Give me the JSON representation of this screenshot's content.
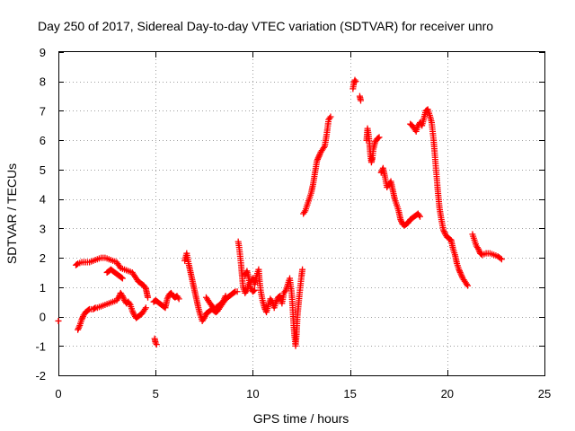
{
  "chart_data": {
    "type": "scatter",
    "title": "Day 250 of 2017, Sidereal Day-to-day VTEC variation (SDTVAR) for receiver unro",
    "xlabel": "GPS time / hours",
    "ylabel": "SDTVAR / TECUs",
    "xlim": [
      0,
      25
    ],
    "ylim": [
      -2,
      9
    ],
    "xticks": [
      0,
      5,
      10,
      15,
      20,
      25
    ],
    "yticks": [
      -2,
      -1,
      0,
      1,
      2,
      3,
      4,
      5,
      6,
      7,
      8,
      9
    ],
    "grid": true,
    "marker": "+",
    "color": "#ff0000",
    "series": [
      {
        "name": "SDTVAR",
        "segments": [
          [
            [
              0.0,
              -0.15
            ]
          ],
          [
            [
              0.9,
              1.75
            ],
            [
              1.0,
              1.8
            ],
            [
              1.2,
              1.85
            ],
            [
              1.4,
              1.85
            ],
            [
              1.6,
              1.85
            ],
            [
              1.8,
              1.9
            ],
            [
              2.0,
              1.95
            ],
            [
              2.2,
              2.0
            ],
            [
              2.4,
              2.0
            ],
            [
              2.6,
              1.95
            ],
            [
              2.8,
              1.9
            ],
            [
              3.0,
              1.85
            ],
            [
              3.1,
              1.75
            ],
            [
              3.2,
              1.65
            ],
            [
              3.4,
              1.6
            ],
            [
              3.6,
              1.55
            ],
            [
              3.8,
              1.5
            ],
            [
              3.9,
              1.4
            ],
            [
              4.0,
              1.3
            ],
            [
              4.1,
              1.2
            ],
            [
              4.2,
              1.15
            ],
            [
              4.3,
              1.1
            ],
            [
              4.4,
              1.05
            ],
            [
              4.5,
              0.95
            ],
            [
              4.55,
              0.8
            ],
            [
              4.6,
              0.65
            ]
          ],
          [
            [
              2.5,
              1.5
            ],
            [
              2.6,
              1.55
            ],
            [
              2.7,
              1.6
            ],
            [
              2.8,
              1.55
            ],
            [
              2.9,
              1.5
            ],
            [
              3.0,
              1.45
            ],
            [
              3.1,
              1.4
            ],
            [
              3.2,
              1.35
            ],
            [
              3.3,
              1.3
            ]
          ],
          [
            [
              1.0,
              -0.45
            ],
            [
              1.1,
              -0.3
            ],
            [
              1.2,
              -0.1
            ],
            [
              1.3,
              0.05
            ],
            [
              1.4,
              0.15
            ],
            [
              1.5,
              0.2
            ],
            [
              1.6,
              0.25
            ],
            [
              1.7,
              0.25
            ],
            [
              1.8,
              0.25
            ],
            [
              1.9,
              0.3
            ],
            [
              2.0,
              0.3
            ],
            [
              2.2,
              0.35
            ],
            [
              2.4,
              0.4
            ],
            [
              2.6,
              0.45
            ],
            [
              2.8,
              0.5
            ],
            [
              3.0,
              0.55
            ],
            [
              3.1,
              0.65
            ],
            [
              3.2,
              0.8
            ],
            [
              3.3,
              0.7
            ],
            [
              3.4,
              0.55
            ],
            [
              3.5,
              0.45
            ],
            [
              3.6,
              0.5
            ],
            [
              3.7,
              0.4
            ],
            [
              3.8,
              0.2
            ],
            [
              3.9,
              0.05
            ],
            [
              4.0,
              -0.05
            ],
            [
              4.1,
              0.0
            ],
            [
              4.2,
              0.05
            ],
            [
              4.3,
              0.1
            ],
            [
              4.4,
              0.2
            ],
            [
              4.5,
              0.3
            ]
          ],
          [
            [
              4.95,
              -0.75
            ],
            [
              5.0,
              -0.9
            ],
            [
              5.05,
              -0.95
            ]
          ],
          [
            [
              4.9,
              0.5
            ],
            [
              5.0,
              0.55
            ],
            [
              5.1,
              0.5
            ],
            [
              5.2,
              0.45
            ],
            [
              5.3,
              0.4
            ],
            [
              5.4,
              0.35
            ],
            [
              5.5,
              0.3
            ],
            [
              5.6,
              0.6
            ],
            [
              5.7,
              0.75
            ],
            [
              5.8,
              0.8
            ],
            [
              5.9,
              0.7
            ],
            [
              6.0,
              0.65
            ],
            [
              6.1,
              0.7
            ],
            [
              6.2,
              0.6
            ]
          ],
          [
            [
              6.5,
              1.9
            ],
            [
              6.6,
              2.15
            ],
            [
              6.7,
              1.8
            ],
            [
              6.8,
              1.5
            ],
            [
              6.9,
              1.2
            ],
            [
              7.0,
              0.9
            ],
            [
              7.1,
              0.6
            ],
            [
              7.2,
              0.3
            ],
            [
              7.3,
              0.05
            ],
            [
              7.4,
              -0.15
            ],
            [
              7.5,
              -0.05
            ],
            [
              7.6,
              0.1
            ],
            [
              7.7,
              0.15
            ],
            [
              7.8,
              0.2
            ],
            [
              7.9,
              0.25
            ],
            [
              8.0,
              0.2
            ],
            [
              8.1,
              0.15
            ],
            [
              8.2,
              0.2
            ],
            [
              8.3,
              0.3
            ],
            [
              8.4,
              0.4
            ],
            [
              8.5,
              0.5
            ],
            [
              8.6,
              0.6
            ],
            [
              8.7,
              0.65
            ],
            [
              8.8,
              0.7
            ],
            [
              8.9,
              0.75
            ],
            [
              9.0,
              0.8
            ],
            [
              9.1,
              0.85
            ],
            [
              9.2,
              0.85
            ]
          ],
          [
            [
              7.6,
              0.65
            ],
            [
              7.7,
              0.55
            ],
            [
              7.8,
              0.45
            ],
            [
              7.9,
              0.35
            ],
            [
              8.0,
              0.3
            ],
            [
              8.1,
              0.3
            ],
            [
              8.2,
              0.35
            ],
            [
              8.3,
              0.4
            ],
            [
              8.4,
              0.45
            ],
            [
              8.5,
              0.55
            ],
            [
              8.6,
              0.7
            ]
          ],
          [
            [
              9.25,
              2.55
            ],
            [
              9.3,
              2.35
            ],
            [
              9.35,
              2.05
            ],
            [
              9.4,
              1.75
            ],
            [
              9.45,
              1.35
            ],
            [
              9.5,
              1.0
            ],
            [
              9.6,
              0.8
            ],
            [
              9.7,
              0.9
            ],
            [
              9.8,
              1.1
            ],
            [
              9.9,
              1.2
            ],
            [
              10.0,
              1.3
            ],
            [
              10.1,
              1.1
            ],
            [
              10.2,
              1.4
            ],
            [
              10.3,
              1.6
            ],
            [
              10.35,
              1.2
            ],
            [
              10.4,
              0.9
            ],
            [
              10.5,
              0.55
            ],
            [
              10.6,
              0.3
            ],
            [
              10.7,
              0.15
            ],
            [
              10.8,
              0.4
            ],
            [
              10.9,
              0.6
            ],
            [
              11.0,
              0.5
            ],
            [
              11.1,
              0.3
            ],
            [
              11.2,
              0.5
            ],
            [
              11.3,
              0.65
            ],
            [
              11.4,
              0.7
            ],
            [
              11.5,
              0.45
            ],
            [
              11.6,
              0.8
            ],
            [
              11.7,
              0.9
            ],
            [
              11.8,
              1.1
            ],
            [
              11.9,
              1.3
            ],
            [
              12.0,
              0.8
            ],
            [
              12.05,
              0.3
            ],
            [
              12.1,
              -0.3
            ],
            [
              12.15,
              -0.7
            ],
            [
              12.2,
              -1.0
            ],
            [
              12.25,
              -0.6
            ],
            [
              12.3,
              0.05
            ],
            [
              12.35,
              0.4
            ],
            [
              12.4,
              0.75
            ],
            [
              12.45,
              1.05
            ],
            [
              12.5,
              1.35
            ],
            [
              12.55,
              1.6
            ]
          ],
          [
            [
              9.6,
              1.4
            ],
            [
              9.7,
              1.55
            ],
            [
              9.8,
              1.3
            ],
            [
              9.9,
              0.95
            ],
            [
              10.0,
              0.85
            ],
            [
              10.1,
              0.9
            ]
          ],
          [
            [
              12.6,
              3.5
            ],
            [
              12.7,
              3.6
            ],
            [
              12.8,
              3.8
            ],
            [
              12.9,
              4.0
            ],
            [
              13.0,
              4.2
            ],
            [
              13.1,
              4.5
            ],
            [
              13.2,
              4.9
            ],
            [
              13.3,
              5.3
            ],
            [
              13.4,
              5.45
            ],
            [
              13.5,
              5.6
            ],
            [
              13.6,
              5.7
            ],
            [
              13.7,
              5.8
            ],
            [
              13.8,
              6.2
            ],
            [
              13.9,
              6.7
            ],
            [
              14.0,
              6.8
            ]
          ],
          [
            [
              15.15,
              7.75
            ],
            [
              15.2,
              7.95
            ],
            [
              15.25,
              8.05
            ],
            [
              15.3,
              8.0
            ]
          ],
          [
            [
              15.5,
              7.5
            ],
            [
              15.55,
              7.35
            ]
          ],
          [
            [
              15.85,
              6.0
            ],
            [
              15.9,
              6.4
            ],
            [
              15.95,
              6.2
            ],
            [
              16.0,
              5.9
            ],
            [
              16.05,
              5.5
            ],
            [
              16.1,
              5.25
            ],
            [
              16.15,
              5.4
            ],
            [
              16.2,
              5.7
            ],
            [
              16.3,
              5.95
            ],
            [
              16.4,
              6.05
            ],
            [
              16.5,
              6.1
            ]
          ],
          [
            [
              16.6,
              4.9
            ],
            [
              16.7,
              5.05
            ],
            [
              16.8,
              4.75
            ],
            [
              16.9,
              4.4
            ],
            [
              17.0,
              4.5
            ],
            [
              17.1,
              4.6
            ],
            [
              17.2,
              4.3
            ],
            [
              17.3,
              4.0
            ],
            [
              17.4,
              3.8
            ],
            [
              17.5,
              3.6
            ],
            [
              17.6,
              3.3
            ],
            [
              17.7,
              3.15
            ],
            [
              17.8,
              3.1
            ],
            [
              17.9,
              3.15
            ],
            [
              18.0,
              3.2
            ],
            [
              18.1,
              3.3
            ],
            [
              18.2,
              3.35
            ],
            [
              18.3,
              3.4
            ],
            [
              18.4,
              3.45
            ],
            [
              18.5,
              3.5
            ],
            [
              18.6,
              3.4
            ]
          ],
          [
            [
              18.1,
              6.55
            ],
            [
              18.2,
              6.5
            ],
            [
              18.3,
              6.4
            ],
            [
              18.4,
              6.3
            ],
            [
              18.5,
              6.5
            ],
            [
              18.6,
              6.6
            ],
            [
              18.7,
              6.5
            ],
            [
              18.8,
              6.75
            ],
            [
              18.9,
              7.0
            ],
            [
              19.0,
              7.05
            ],
            [
              19.1,
              6.85
            ],
            [
              19.2,
              6.6
            ],
            [
              19.3,
              6.0
            ],
            [
              19.4,
              5.2
            ],
            [
              19.5,
              4.4
            ],
            [
              19.6,
              3.7
            ],
            [
              19.7,
              3.3
            ],
            [
              19.8,
              2.95
            ],
            [
              19.9,
              2.8
            ],
            [
              20.0,
              2.7
            ],
            [
              20.1,
              2.65
            ],
            [
              20.2,
              2.6
            ],
            [
              20.3,
              2.3
            ],
            [
              20.4,
              2.1
            ],
            [
              20.5,
              1.8
            ],
            [
              20.6,
              1.6
            ],
            [
              20.7,
              1.45
            ],
            [
              20.8,
              1.3
            ],
            [
              20.9,
              1.2
            ],
            [
              21.0,
              1.1
            ],
            [
              21.05,
              1.05
            ]
          ],
          [
            [
              21.3,
              2.8
            ],
            [
              21.4,
              2.6
            ],
            [
              21.5,
              2.4
            ],
            [
              21.6,
              2.3
            ],
            [
              21.7,
              2.15
            ],
            [
              21.8,
              2.1
            ],
            [
              22.0,
              2.15
            ],
            [
              22.2,
              2.15
            ],
            [
              22.4,
              2.1
            ],
            [
              22.6,
              2.05
            ],
            [
              22.8,
              1.95
            ]
          ]
        ]
      }
    ]
  }
}
